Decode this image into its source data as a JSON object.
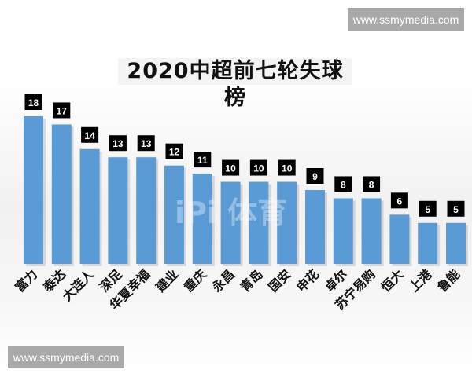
{
  "watermark_top": "www.ssmymedia.com",
  "watermark_bottom": "www.ssmymedia.com",
  "center_watermark": "iPi 体育",
  "chart_data": {
    "type": "bar",
    "title": "2020中超前七轮失球榜",
    "categories": [
      "富力",
      "泰达",
      "大连人",
      "深足",
      "华夏幸福",
      "建业",
      "重庆",
      "永昌",
      "青岛",
      "国安",
      "申花",
      "卓尔",
      "苏宁易购",
      "恒大",
      "上港",
      "鲁能"
    ],
    "values": [
      18,
      17,
      14,
      13,
      13,
      12,
      11,
      10,
      10,
      10,
      9,
      8,
      8,
      6,
      5,
      5
    ],
    "ylim": [
      0,
      18
    ],
    "grid": false,
    "data_labels": true,
    "bar_color": "#5b9bd5",
    "label_bg": "#000000"
  }
}
